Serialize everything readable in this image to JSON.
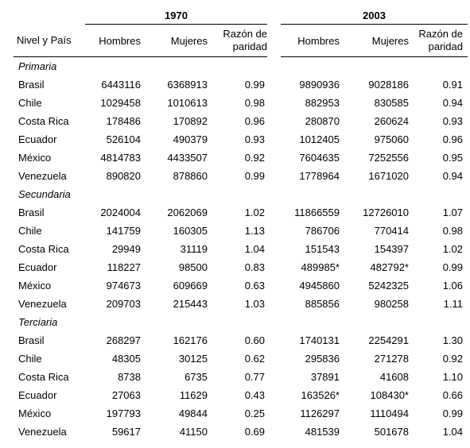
{
  "years": [
    "1970",
    "2003"
  ],
  "headers": {
    "country": "Nivel y País",
    "men": "Hombres",
    "women": "Mujeres",
    "ratio_line1": "Razón de",
    "ratio_line2": "paridad"
  },
  "sections": [
    {
      "title": "Primaria",
      "rows": [
        {
          "country": "Brasil",
          "h1970": "6443116",
          "m1970": "6368913",
          "r1970": "0.99",
          "h2003": "9890936",
          "m2003": "9028186",
          "r2003": "0.91"
        },
        {
          "country": "Chile",
          "h1970": "1029458",
          "m1970": "1010613",
          "r1970": "0.98",
          "h2003": "882953",
          "m2003": "830585",
          "r2003": "0.94"
        },
        {
          "country": "Costa Rica",
          "h1970": "178486",
          "m1970": "170892",
          "r1970": "0.96",
          "h2003": "280870",
          "m2003": "260624",
          "r2003": "0.93"
        },
        {
          "country": "Ecuador",
          "h1970": "526104",
          "m1970": "490379",
          "r1970": "0.93",
          "h2003": "1012405",
          "m2003": "975060",
          "r2003": "0.96"
        },
        {
          "country": "México",
          "h1970": "4814783",
          "m1970": "4433507",
          "r1970": "0.92",
          "h2003": "7604635",
          "m2003": "7252556",
          "r2003": "0.95"
        },
        {
          "country": "Venezuela",
          "h1970": "890820",
          "m1970": "878860",
          "r1970": "0.99",
          "h2003": "1778964",
          "m2003": "1671020",
          "r2003": "0.94"
        }
      ]
    },
    {
      "title": "Secundaria",
      "rows": [
        {
          "country": "Brasil",
          "h1970": "2024004",
          "m1970": "2062069",
          "r1970": "1.02",
          "h2003": "11866559",
          "m2003": "12726010",
          "r2003": "1.07"
        },
        {
          "country": "Chile",
          "h1970": "141759",
          "m1970": "160305",
          "r1970": "1.13",
          "h2003": "786706",
          "m2003": "770414",
          "r2003": "0.98"
        },
        {
          "country": "Costa Rica",
          "h1970": "29949",
          "m1970": "31119",
          "r1970": "1.04",
          "h2003": "151543",
          "m2003": "154397",
          "r2003": "1.02"
        },
        {
          "country": "Ecuador",
          "h1970": "118227",
          "m1970": "98500",
          "r1970": "0.83",
          "h2003": "489985*",
          "m2003": "482792*",
          "r2003": "0.99"
        },
        {
          "country": "México",
          "h1970": "974673",
          "m1970": "609669",
          "r1970": "0.63",
          "h2003": "4945860",
          "m2003": "5242325",
          "r2003": "1.06"
        },
        {
          "country": "Venezuela",
          "h1970": "209703",
          "m1970": "215443",
          "r1970": "1.03",
          "h2003": "885856",
          "m2003": "980258",
          "r2003": "1.11"
        }
      ]
    },
    {
      "title": "Terciaria",
      "rows": [
        {
          "country": "Brasil",
          "h1970": "268297",
          "m1970": "162176",
          "r1970": "0.60",
          "h2003": "1740131",
          "m2003": "2254291",
          "r2003": "1.30"
        },
        {
          "country": "Chile",
          "h1970": "48305",
          "m1970": "30125",
          "r1970": "0.62",
          "h2003": "295836",
          "m2003": "271278",
          "r2003": "0.92"
        },
        {
          "country": "Costa Rica",
          "h1970": "8738",
          "m1970": "6735",
          "r1970": "0.77",
          "h2003": "37891",
          "m2003": "41608",
          "r2003": "1.10"
        },
        {
          "country": "Ecuador",
          "h1970": "27063",
          "m1970": "11629",
          "r1970": "0.43",
          "h2003": "163526*",
          "m2003": "108430*",
          "r2003": "0.66"
        },
        {
          "country": "México",
          "h1970": "197793",
          "m1970": "49844",
          "r1970": "0.25",
          "h2003": "1126297",
          "m2003": "1110494",
          "r2003": "0.99"
        },
        {
          "country": "Venezuela",
          "h1970": "59617",
          "m1970": "41150",
          "r1970": "0.69",
          "h2003": "481539",
          "m2003": "501678",
          "r2003": "1.04"
        }
      ]
    }
  ]
}
